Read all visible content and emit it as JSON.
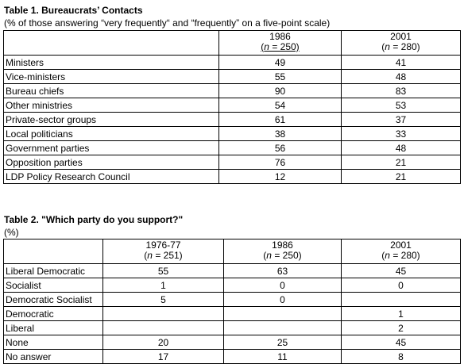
{
  "table1": {
    "title": "Table 1. Bureaucrats’ Contacts",
    "subtitle": "(% of those answering “very frequently“ and “frequently” on a five-point scale)",
    "columns": [
      {
        "year": "1986",
        "n_prefix": "(",
        "n_var": "n",
        "n_value": " = 250)"
      },
      {
        "year": "2001",
        "n_prefix": "(",
        "n_var": "n",
        "n_value": " = 280)"
      }
    ],
    "rows": [
      {
        "label": "Ministers",
        "values": [
          "49",
          "41"
        ]
      },
      {
        "label": "Vice-ministers",
        "values": [
          "55",
          "48"
        ]
      },
      {
        "label": "Bureau chiefs",
        "values": [
          "90",
          "83"
        ]
      },
      {
        "label": "Other ministries",
        "values": [
          "54",
          "53"
        ]
      },
      {
        "label": "Private-sector groups",
        "values": [
          "61",
          "37"
        ]
      },
      {
        "label": "Local politicians",
        "values": [
          "38",
          "33"
        ]
      },
      {
        "label": "Government parties",
        "values": [
          "56",
          "48"
        ]
      },
      {
        "label": "Opposition parties",
        "values": [
          "76",
          "21"
        ]
      },
      {
        "label": "LDP Policy Research Council",
        "values": [
          "12",
          "21"
        ]
      }
    ]
  },
  "table2": {
    "title": "Table 2. \"Which party do you support?\"",
    "subtitle": "(%)",
    "columns": [
      {
        "year": "1976-77",
        "n_prefix": "(",
        "n_var": "n",
        "n_value": " = 251)"
      },
      {
        "year": "1986",
        "n_prefix": "(",
        "n_var": "n",
        "n_value": " = 250)"
      },
      {
        "year": "2001",
        "n_prefix": "(",
        "n_var": "n",
        "n_value": " = 280)"
      }
    ],
    "rows": [
      {
        "label": "Liberal Democratic",
        "values": [
          "55",
          "63",
          "45"
        ]
      },
      {
        "label": "Socialist",
        "values": [
          "1",
          "0",
          "0"
        ]
      },
      {
        "label": "Democratic Socialist",
        "values": [
          "5",
          "0",
          ""
        ]
      },
      {
        "label": "Democratic",
        "values": [
          "",
          "",
          "1"
        ]
      },
      {
        "label": "Liberal",
        "values": [
          "",
          "",
          "2"
        ]
      },
      {
        "label": "None",
        "values": [
          "20",
          "25",
          "45"
        ]
      },
      {
        "label": "No answer",
        "values": [
          "17",
          "11",
          "8"
        ]
      }
    ]
  }
}
